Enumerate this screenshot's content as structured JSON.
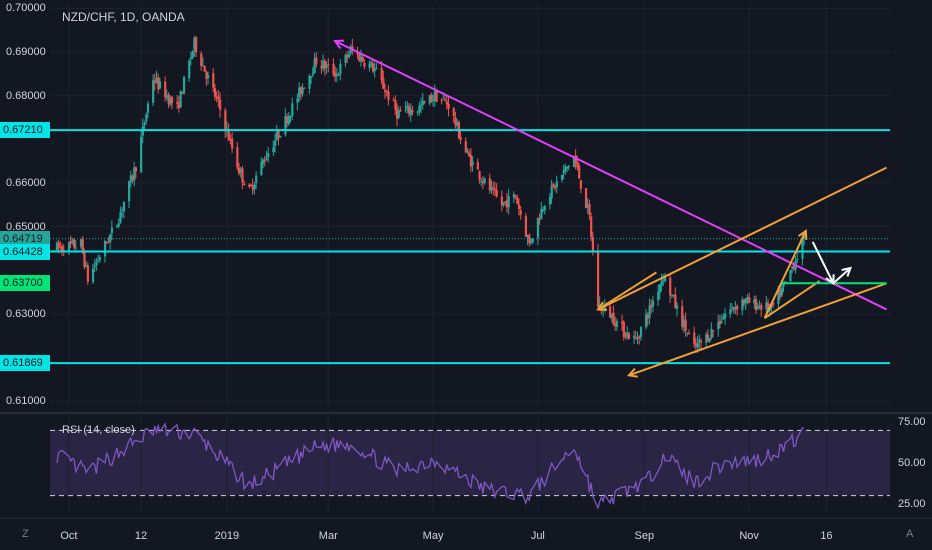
{
  "header": {
    "title": "NZD/CHF, 1D, OANDA"
  },
  "rsi_panel": {
    "title": "RSI (14, close)"
  },
  "corners": {
    "left": "Z",
    "right": "A"
  },
  "colors": {
    "background": "#131722",
    "up": "#26a69a",
    "down": "#ef5350",
    "level": "#00e5e5",
    "trend": "#e040fb",
    "channel": "#f0a038",
    "green": "#00e676",
    "rsi": "#7e57c2"
  },
  "chart_data": [
    {
      "type": "candlestick",
      "title": "NZD/CHF, 1D, OANDA",
      "ylim": [
        0.6075,
        0.701
      ],
      "y_ticks": [
        "0.70000",
        "0.69000",
        "0.68000",
        "0.66000",
        "0.65000",
        "0.63000",
        "0.61000"
      ],
      "x_ticks": [
        "Oct",
        "12",
        "2019",
        "Mar",
        "May",
        "Jul",
        "Sep",
        "Nov",
        "16"
      ],
      "price_tags": [
        {
          "label": "0.67210",
          "value": 0.6721,
          "color": "#00e5e5"
        },
        {
          "label": "0.64719",
          "value": 0.64719,
          "color": "#26a69a"
        },
        {
          "label": "0.64428",
          "value": 0.64428,
          "color": "#00e5e5"
        },
        {
          "label": "0.63700",
          "value": 0.637,
          "color": "#00e676"
        },
        {
          "label": "0.61869",
          "value": 0.61869,
          "color": "#00e5e5"
        }
      ],
      "horizontal_levels": [
        0.6721,
        0.64428,
        0.61869
      ],
      "last_price": 0.64719,
      "anchors": [
        {
          "x": "2018-09-24",
          "y": 0.645
        },
        {
          "x": "2018-10-08",
          "y": 0.646
        },
        {
          "x": "2018-10-12",
          "y": 0.638
        },
        {
          "x": "2018-10-29",
          "y": 0.651
        },
        {
          "x": "2018-11-09",
          "y": 0.664
        },
        {
          "x": "2018-11-19",
          "y": 0.684
        },
        {
          "x": "2018-12-03",
          "y": 0.677
        },
        {
          "x": "2018-12-13",
          "y": 0.692
        },
        {
          "x": "2018-12-27",
          "y": 0.678
        },
        {
          "x": "2019-01-08",
          "y": 0.663
        },
        {
          "x": "2019-01-14",
          "y": 0.658
        },
        {
          "x": "2019-01-22",
          "y": 0.665
        },
        {
          "x": "2019-02-01",
          "y": 0.672
        },
        {
          "x": "2019-02-14",
          "y": 0.682
        },
        {
          "x": "2019-02-22",
          "y": 0.688
        },
        {
          "x": "2019-03-06",
          "y": 0.685
        },
        {
          "x": "2019-03-14",
          "y": 0.6905
        },
        {
          "x": "2019-03-28",
          "y": 0.686
        },
        {
          "x": "2019-04-10",
          "y": 0.676
        },
        {
          "x": "2019-04-22",
          "y": 0.677
        },
        {
          "x": "2019-05-02",
          "y": 0.68
        },
        {
          "x": "2019-05-10",
          "y": 0.678
        },
        {
          "x": "2019-05-20",
          "y": 0.667
        },
        {
          "x": "2019-05-31",
          "y": 0.66
        },
        {
          "x": "2019-06-10",
          "y": 0.655
        },
        {
          "x": "2019-06-18",
          "y": 0.657
        },
        {
          "x": "2019-06-26",
          "y": 0.646
        },
        {
          "x": "2019-07-05",
          "y": 0.656
        },
        {
          "x": "2019-07-12",
          "y": 0.66
        },
        {
          "x": "2019-07-22",
          "y": 0.666
        },
        {
          "x": "2019-07-31",
          "y": 0.652
        },
        {
          "x": "2019-08-05",
          "y": 0.632
        },
        {
          "x": "2019-08-12",
          "y": 0.63
        },
        {
          "x": "2019-08-20",
          "y": 0.626
        },
        {
          "x": "2019-08-27",
          "y": 0.624
        },
        {
          "x": "2019-09-04",
          "y": 0.631
        },
        {
          "x": "2019-09-12",
          "y": 0.639
        },
        {
          "x": "2019-09-20",
          "y": 0.631
        },
        {
          "x": "2019-09-30",
          "y": 0.622
        },
        {
          "x": "2019-10-08",
          "y": 0.625
        },
        {
          "x": "2019-10-18",
          "y": 0.63
        },
        {
          "x": "2019-10-28",
          "y": 0.633
        },
        {
          "x": "2019-11-06",
          "y": 0.632
        },
        {
          "x": "2019-11-14",
          "y": 0.631
        },
        {
          "x": "2019-11-22",
          "y": 0.637
        },
        {
          "x": "2019-12-03",
          "y": 0.64719
        }
      ]
    },
    {
      "type": "line",
      "title": "RSI (14, close)",
      "ylim": [
        20,
        80
      ],
      "y_ticks": [
        "75.00",
        "50.00",
        "25.00"
      ],
      "bands": [
        70,
        30
      ],
      "anchors": [
        {
          "x": "2018-09-24",
          "y": 55
        },
        {
          "x": "2018-10-12",
          "y": 44
        },
        {
          "x": "2018-11-19",
          "y": 70
        },
        {
          "x": "2018-12-13",
          "y": 68
        },
        {
          "x": "2019-01-14",
          "y": 36
        },
        {
          "x": "2019-02-22",
          "y": 60
        },
        {
          "x": "2019-03-14",
          "y": 62
        },
        {
          "x": "2019-04-10",
          "y": 45
        },
        {
          "x": "2019-05-02",
          "y": 52
        },
        {
          "x": "2019-05-31",
          "y": 34
        },
        {
          "x": "2019-06-26",
          "y": 30
        },
        {
          "x": "2019-07-22",
          "y": 60
        },
        {
          "x": "2019-08-05",
          "y": 24
        },
        {
          "x": "2019-08-12",
          "y": 28
        },
        {
          "x": "2019-09-04",
          "y": 40
        },
        {
          "x": "2019-09-12",
          "y": 56
        },
        {
          "x": "2019-09-30",
          "y": 38
        },
        {
          "x": "2019-10-18",
          "y": 50
        },
        {
          "x": "2019-11-06",
          "y": 52
        },
        {
          "x": "2019-11-22",
          "y": 60
        },
        {
          "x": "2019-12-03",
          "y": 68
        }
      ]
    }
  ],
  "drawings": [
    {
      "name": "trendline",
      "color": "#e040fb",
      "from": {
        "x": "2019-03-05",
        "y": 0.6925
      },
      "to": {
        "x": "2020-01-20",
        "y": 0.631
      }
    },
    {
      "name": "channel-upper",
      "color": "#f0a038",
      "from": {
        "x": "2019-08-05",
        "y": 0.631
      },
      "to": {
        "x": "2020-01-20",
        "y": 0.6635
      }
    },
    {
      "name": "channel-lower",
      "color": "#f0a038",
      "from": {
        "x": "2019-08-23",
        "y": 0.6159
      },
      "to": {
        "x": "2020-01-20",
        "y": 0.637
      }
    },
    {
      "name": "channel-inner-top",
      "color": "#f0a038",
      "from": {
        "x": "2019-08-05",
        "y": 0.631
      },
      "to": {
        "x": "2019-09-08",
        "y": 0.6395
      }
    },
    {
      "name": "wedge-upper",
      "color": "#f0a038",
      "from": {
        "x": "2019-11-10",
        "y": 0.629
      },
      "to": {
        "x": "2019-12-04",
        "y": 0.649
      }
    },
    {
      "name": "wedge-lower",
      "color": "#f0a038",
      "from": {
        "x": "2019-11-10",
        "y": 0.629
      },
      "to": {
        "x": "2019-12-12",
        "y": 0.6375
      }
    },
    {
      "name": "green-level",
      "color": "#00e676",
      "from": {
        "x": "2019-11-20",
        "y": 0.637
      },
      "to": {
        "x": "2020-01-20",
        "y": 0.637
      }
    },
    {
      "name": "forecast-down",
      "color": "#ffffff",
      "from": {
        "x": "2019-12-08",
        "y": 0.6465
      },
      "to": {
        "x": "2019-12-20",
        "y": 0.637
      }
    },
    {
      "name": "forecast-up",
      "color": "#ffffff",
      "from": {
        "x": "2019-12-20",
        "y": 0.637
      },
      "to": {
        "x": "2019-12-30",
        "y": 0.6405
      }
    }
  ]
}
